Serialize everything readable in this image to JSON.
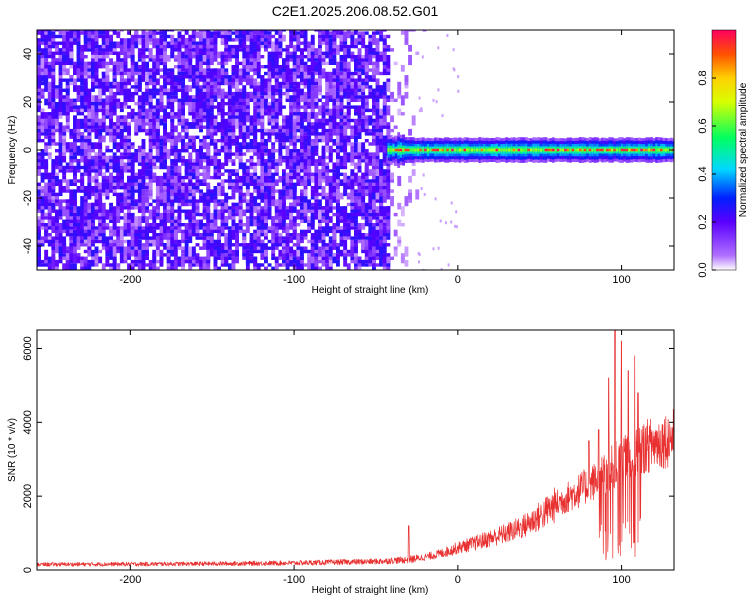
{
  "figure_title": "C2E1.2025.206.08.52.G01",
  "chart_data": [
    {
      "type": "heatmap",
      "title": "",
      "xlabel": "Height of straight line (km)",
      "ylabel": "Frequency (Hz)",
      "xlim": [
        -257,
        132
      ],
      "ylim": [
        -50,
        50
      ],
      "x_ticks": [
        -200,
        -100,
        0,
        100
      ],
      "y_ticks": [
        -40,
        -20,
        0,
        20,
        40
      ],
      "colorbar": {
        "label": "Normalized spectral amplitude",
        "range": [
          0,
          1
        ],
        "ticks": [
          0.0,
          0.2,
          0.4,
          0.6,
          0.8
        ],
        "colormap": [
          "#ffffff",
          "#7a00ff",
          "#0000ff",
          "#00d0ff",
          "#00ff40",
          "#ffff00",
          "#ff8000",
          "#ff0030"
        ]
      },
      "regions": [
        {
          "name": "noise",
          "x_range": [
            -257,
            -43
          ],
          "freq_range": [
            -50,
            50
          ],
          "typical_amplitude": 0.15
        },
        {
          "name": "transition",
          "x_range": [
            -43,
            -25
          ],
          "freq_range": [
            -50,
            50
          ],
          "typical_amplitude": 0.05
        },
        {
          "name": "carrier",
          "x_range": [
            -43,
            132
          ],
          "center_freq": 0,
          "bandwidth": 4,
          "peak_amplitude": 1.0
        }
      ]
    },
    {
      "type": "line",
      "title": "",
      "xlabel": "Height of straight line (km)",
      "ylabel": "SNR (10 * v/v)",
      "xlim": [
        -257,
        132
      ],
      "ylim": [
        0,
        6500
      ],
      "x_ticks": [
        -200,
        -100,
        0,
        100
      ],
      "y_ticks": [
        0,
        2000,
        4000,
        6000
      ],
      "line_color": "#e83030",
      "series": [
        {
          "x": [
            -257,
            -200,
            -150,
            -100,
            -50,
            -30,
            -20,
            -10,
            0,
            10,
            20,
            30,
            40,
            50,
            60,
            70,
            80,
            90,
            95,
            100,
            105,
            110,
            115,
            120,
            125,
            132
          ],
          "values": [
            150,
            160,
            170,
            190,
            230,
            280,
            350,
            450,
            600,
            720,
            860,
            1000,
            1180,
            1450,
            1780,
            2050,
            2300,
            2600,
            2800,
            3000,
            3050,
            3200,
            3350,
            3420,
            3500,
            3600
          ]
        }
      ],
      "spikes": [
        {
          "x": -30,
          "value": 1200
        },
        {
          "x": 80,
          "value": 3500
        },
        {
          "x": 86,
          "value": 3800
        },
        {
          "x": 92,
          "value": 5200
        },
        {
          "x": 96,
          "value": 6500
        },
        {
          "x": 100,
          "value": 6200
        },
        {
          "x": 104,
          "value": 5400
        },
        {
          "x": 108,
          "value": 5800
        },
        {
          "x": 110,
          "value": 4800
        }
      ]
    }
  ]
}
